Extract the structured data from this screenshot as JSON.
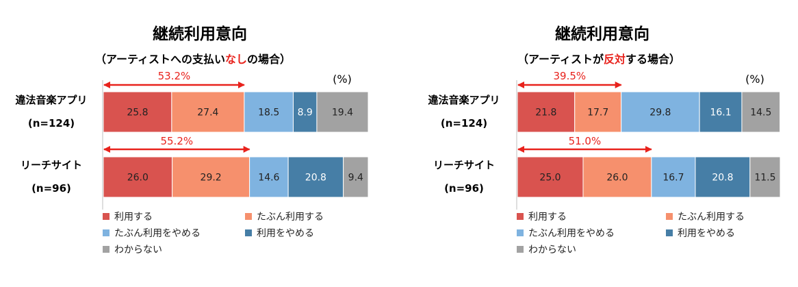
{
  "colors": {
    "c1": "#d9534f",
    "c2": "#f6906d",
    "c3": "#7fb3e0",
    "c4": "#467ea6",
    "c5": "#a2a2a2",
    "red": "#e8221c",
    "axis": "#bfbfbf"
  },
  "legend": [
    "利用する",
    "たぶん利用する",
    "たぶん利用をやめる",
    "利用をやめる",
    "わからない"
  ],
  "chart_data": [
    {
      "type": "bar",
      "orientation": "horizontal-stacked-100",
      "title": "継続利用意向",
      "subtitle_parts": [
        "（アーティストへの支払い",
        "なし",
        "の場合）"
      ],
      "unit": "(%)",
      "categories": [
        {
          "name": "違法音楽アプリ",
          "n": "(n=124)"
        },
        {
          "name": "リーチサイト",
          "n": "(n=96)"
        }
      ],
      "series": [
        {
          "name": "利用する",
          "values": [
            25.8,
            26.0
          ]
        },
        {
          "name": "たぶん利用する",
          "values": [
            27.4,
            29.2
          ]
        },
        {
          "name": "たぶん利用をやめる",
          "values": [
            18.5,
            14.6
          ]
        },
        {
          "name": "利用をやめる",
          "values": [
            8.9,
            20.8
          ]
        },
        {
          "name": "わからない",
          "values": [
            19.4,
            9.4
          ]
        }
      ],
      "value_labels": [
        [
          "25.8",
          "27.4",
          "18.5",
          "8.9",
          "19.4"
        ],
        [
          "26.0",
          "29.2",
          "14.6",
          "20.8",
          "9.4"
        ]
      ],
      "annotations": [
        "53.2%",
        "55.2%"
      ]
    },
    {
      "type": "bar",
      "orientation": "horizontal-stacked-100",
      "title": "継続利用意向",
      "subtitle_parts": [
        "（アーティストが",
        "反対",
        "する場合）"
      ],
      "unit": "(%)",
      "categories": [
        {
          "name": "違法音楽アプリ",
          "n": "(n=124)"
        },
        {
          "name": "リーチサイト",
          "n": "(n=96)"
        }
      ],
      "series": [
        {
          "name": "利用する",
          "values": [
            21.8,
            25.0
          ]
        },
        {
          "name": "たぶん利用する",
          "values": [
            17.7,
            26.0
          ]
        },
        {
          "name": "たぶん利用をやめる",
          "values": [
            29.8,
            16.7
          ]
        },
        {
          "name": "利用をやめる",
          "values": [
            16.1,
            20.8
          ]
        },
        {
          "name": "わからない",
          "values": [
            14.5,
            11.5
          ]
        }
      ],
      "value_labels": [
        [
          "21.8",
          "17.7",
          "29.8",
          "16.1",
          "14.5"
        ],
        [
          "25.0",
          "26.0",
          "16.7",
          "20.8",
          "11.5"
        ]
      ],
      "annotations": [
        "39.5%",
        "51.0%"
      ]
    }
  ]
}
